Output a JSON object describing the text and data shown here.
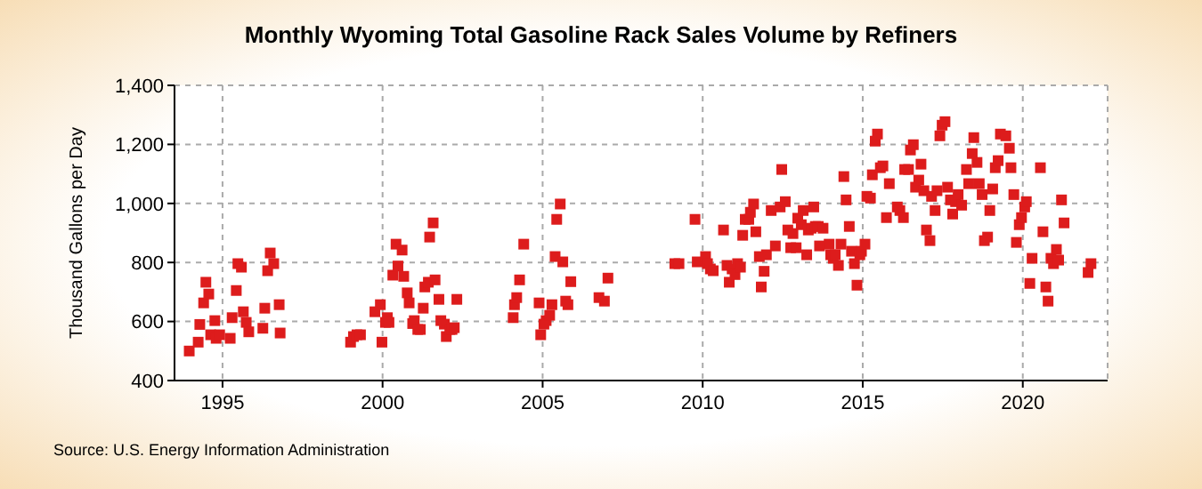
{
  "chart_data": {
    "type": "scatter",
    "title": "Monthly Wyoming Total Gasoline Rack Sales Volume by Refiners",
    "ylabel": "Thousand Gallons per Day",
    "annotations": [
      "Source: U.S. Energy Information Administration"
    ],
    "marker": "square",
    "grid": true,
    "xlim": [
      1993.5,
      2022.65
    ],
    "xticks": [
      1995,
      2000,
      2005,
      2010,
      2015,
      2020
    ],
    "ylim": [
      400,
      1400
    ],
    "yticks": [
      400,
      600,
      800,
      {
        "value": 1000,
        "label": "1,000"
      },
      {
        "value": 1200,
        "label": "1,200"
      },
      {
        "value": 1400,
        "label": "1,400"
      }
    ],
    "series": [
      {
        "color": "#dd1c1c",
        "x": [
          1993.96,
          1994.24,
          1994.29,
          1994.41,
          1994.48,
          1994.57,
          1994.63,
          1994.76,
          1994.8,
          1994.91,
          1995.24,
          1995.3,
          1995.43,
          1995.48,
          1995.59,
          1995.65,
          1995.74,
          1995.82,
          1996.26,
          1996.32,
          1996.41,
          1996.49,
          1996.6,
          1996.77,
          1996.8,
          1999.0,
          1999.09,
          1999.2,
          1999.31,
          1999.76,
          1999.93,
          1999.98,
          2000.09,
          2000.15,
          2000.2,
          2000.32,
          2000.42,
          2000.48,
          2000.61,
          2000.66,
          2000.77,
          2000.83,
          2000.94,
          2000.99,
          2001.1,
          2001.18,
          2001.27,
          2001.32,
          2001.43,
          2001.47,
          2001.58,
          2001.64,
          2001.76,
          2001.82,
          2001.93,
          2001.99,
          2002.1,
          2002.17,
          2002.24,
          2002.32,
          2004.08,
          2004.12,
          2004.19,
          2004.28,
          2004.41,
          2004.89,
          2004.94,
          2005.04,
          2005.11,
          2005.22,
          2005.29,
          2005.39,
          2005.44,
          2005.55,
          2005.63,
          2005.72,
          2005.79,
          2005.88,
          2006.76,
          2006.93,
          2007.04,
          2009.13,
          2009.26,
          2009.76,
          2009.83,
          2010.09,
          2010.15,
          2010.24,
          2010.33,
          2010.65,
          2010.76,
          2010.83,
          2010.92,
          2011.01,
          2011.09,
          2011.18,
          2011.25,
          2011.33,
          2011.44,
          2011.49,
          2011.59,
          2011.66,
          2011.77,
          2011.83,
          2011.92,
          2011.99,
          2012.14,
          2012.27,
          2012.42,
          2012.47,
          2012.58,
          2012.66,
          2012.75,
          2012.82,
          2012.92,
          2012.97,
          2013.08,
          2013.14,
          2013.25,
          2013.3,
          2013.39,
          2013.47,
          2013.52,
          2013.61,
          2013.65,
          2013.76,
          2013.95,
          2014.0,
          2014.08,
          2014.14,
          2014.24,
          2014.32,
          2014.41,
          2014.48,
          2014.58,
          2014.65,
          2014.74,
          2014.82,
          2014.91,
          2014.96,
          2015.07,
          2015.13,
          2015.24,
          2015.3,
          2015.39,
          2015.46,
          2015.55,
          2015.63,
          2015.74,
          2015.83,
          2016.08,
          2016.16,
          2016.27,
          2016.31,
          2016.43,
          2016.49,
          2016.58,
          2016.65,
          2016.75,
          2016.82,
          2016.91,
          2016.99,
          2017.1,
          2017.15,
          2017.26,
          2017.32,
          2017.41,
          2017.48,
          2017.57,
          2017.65,
          2017.74,
          2017.81,
          2017.9,
          2017.98,
          2018.09,
          2018.24,
          2018.31,
          2018.42,
          2018.47,
          2018.57,
          2018.64,
          2018.73,
          2018.8,
          2018.9,
          2018.97,
          2019.06,
          2019.14,
          2019.23,
          2019.3,
          2019.47,
          2019.58,
          2019.63,
          2019.72,
          2019.8,
          2019.89,
          2019.96,
          2020.06,
          2020.11,
          2020.22,
          2020.29,
          2020.55,
          2020.63,
          2020.72,
          2020.79,
          2020.88,
          2020.96,
          2021.05,
          2021.12,
          2021.21,
          2021.29,
          2022.04,
          2022.13
        ],
        "values": [
          500,
          530,
          590,
          663,
          733,
          693,
          555,
          603,
          543,
          555,
          543,
          613,
          705,
          796,
          784,
          633,
          597,
          565,
          577,
          645,
          772,
          832,
          796,
          657,
          561,
          530,
          549,
          555,
          555,
          633,
          657,
          530,
          597,
          613,
          597,
          757,
          862,
          788,
          842,
          753,
          697,
          663,
          593,
          603,
          573,
          573,
          645,
          717,
          733,
          886,
          934,
          741,
          675,
          603,
          591,
          549,
          573,
          573,
          579,
          675,
          613,
          657,
          681,
          741,
          862,
          663,
          555,
          591,
          603,
          621,
          657,
          820,
          946,
          998,
          802,
          669,
          657,
          735,
          681,
          669,
          747,
          796,
          796,
          946,
          802,
          820,
          796,
          778,
          772,
          910,
          790,
          733,
          778,
          759,
          796,
          784,
          892,
          946,
          946,
          970,
          998,
          904,
          820,
          717,
          770,
          826,
          976,
          856,
          988,
          1115,
          1006,
          910,
          850,
          898,
          850,
          950,
          928,
          976,
          826,
          910,
          916,
          988,
          922,
          922,
          856,
          916,
          862,
          826,
          814,
          826,
          790,
          862,
          1091,
          1012,
          922,
          838,
          796,
          723,
          826,
          838,
          862,
          1024,
          1018,
          1097,
          1211,
          1235,
          1121,
          1127,
          952,
          1067,
          988,
          976,
          952,
          1115,
          1115,
          1181,
          1199,
          1055,
          1079,
          1133,
          1043,
          910,
          874,
          1024,
          976,
          1043,
          1229,
          1265,
          1277,
          1055,
          1012,
          964,
          1006,
          1030,
          994,
          1115,
          1067,
          1169,
          1223,
          1139,
          1067,
          1030,
          874,
          886,
          976,
          1049,
          1121,
          1145,
          1235,
          1229,
          1187,
          1121,
          1030,
          868,
          928,
          952,
          988,
          1006,
          729,
          814,
          1121,
          904,
          717,
          669,
          814,
          796,
          844,
          808,
          1012,
          934,
          766,
          796
        ]
      }
    ]
  }
}
